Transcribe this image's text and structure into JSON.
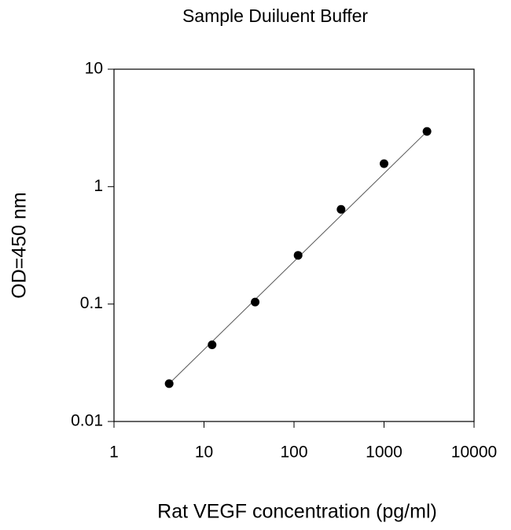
{
  "chart_data": {
    "type": "scatter",
    "title": "Sample Duiluent Buffer",
    "x_label": "Rat VEGF concentration (pg/ml)",
    "y_label": "OD=450 nm",
    "x": [
      4.1,
      12.3,
      37,
      111,
      333,
      1000,
      3000
    ],
    "values": [
      0.021,
      0.045,
      0.104,
      0.26,
      0.64,
      1.57,
      2.95
    ],
    "color": "#000000",
    "fit_line": true,
    "log_x": true,
    "log_y": true,
    "xlim": [
      1,
      10000
    ],
    "xticks": [
      1,
      10,
      100,
      1000,
      10000
    ],
    "ylim": [
      0.01,
      10
    ],
    "yticks": [
      0.01,
      0.1,
      1,
      10
    ]
  }
}
